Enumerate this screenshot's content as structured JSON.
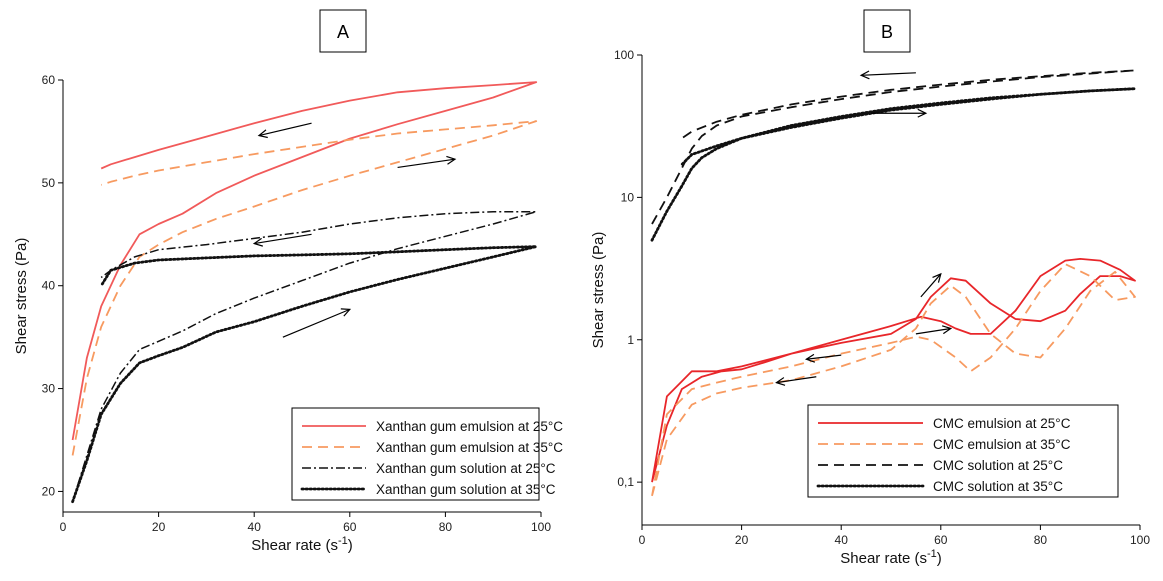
{
  "chart_data": [
    {
      "type": "line",
      "panel_label": "A",
      "xlabel": "Shear rate (s",
      "xlabel_sup": "-1",
      "xlabel_close": ")",
      "ylabel": "Shear stress (Pa)",
      "xlim": [
        0,
        100
      ],
      "ylim": [
        18,
        60
      ],
      "xticks": [
        0,
        20,
        40,
        60,
        80,
        100
      ],
      "yticks": [
        20,
        30,
        40,
        50,
        60
      ],
      "xtick_labels": [
        "0",
        "20",
        "40",
        "60",
        "80",
        "100"
      ],
      "ytick_labels": [
        "20",
        "30",
        "40",
        "50",
        "60"
      ],
      "legend_position": "bottom-right",
      "series": [
        {
          "name": "Xanthan gum emulsion at 25°C",
          "color": "#f15a5a",
          "style": "solid",
          "x": [
            2,
            5,
            8,
            12,
            16,
            20,
            25,
            32,
            40,
            50,
            60,
            70,
            80,
            90,
            99,
            90,
            80,
            70,
            60,
            50,
            40,
            30,
            20,
            15,
            10,
            8
          ],
          "y": [
            25,
            33,
            38,
            42,
            45,
            46,
            47,
            49,
            50.7,
            52.5,
            54.3,
            55.7,
            57,
            58.3,
            59.8,
            59.5,
            59.2,
            58.8,
            58,
            57,
            55.8,
            54.5,
            53.2,
            52.5,
            51.8,
            51.4
          ]
        },
        {
          "name": "Xanthan gum emulsion at 35°C",
          "color": "#f79a60",
          "style": "dashed",
          "x": [
            2,
            5,
            8,
            12,
            16,
            20,
            25,
            32,
            40,
            50,
            60,
            70,
            80,
            90,
            99,
            90,
            80,
            70,
            60,
            50,
            40,
            30,
            20,
            15,
            10,
            8
          ],
          "y": [
            23.5,
            31,
            36,
            40,
            42.8,
            44,
            45.2,
            46.5,
            47.7,
            49.3,
            50.7,
            52,
            53.3,
            54.6,
            56,
            55.6,
            55.2,
            54.8,
            54.2,
            53.5,
            52.8,
            52,
            51.2,
            50.7,
            50.1,
            49.8
          ]
        },
        {
          "name": "Xanthan gum solution at 25°C",
          "color": "#111111",
          "style": "dashdot",
          "x": [
            2,
            5,
            8,
            12,
            16,
            20,
            25,
            32,
            40,
            50,
            60,
            70,
            80,
            90,
            99,
            90,
            80,
            70,
            60,
            50,
            40,
            30,
            20,
            15,
            10,
            8
          ],
          "y": [
            19,
            23.5,
            28,
            31.5,
            33.8,
            34.6,
            35.6,
            37.3,
            38.8,
            40.5,
            42.2,
            43.6,
            44.8,
            46,
            47.2,
            47.2,
            47,
            46.6,
            46,
            45.2,
            44.6,
            44,
            43.5,
            42.8,
            41.5,
            40.8
          ]
        },
        {
          "name": "Xanthan gum solution at 35°C",
          "color": "#111111",
          "style": "dotted",
          "x": [
            2,
            5,
            8,
            12,
            16,
            20,
            25,
            32,
            40,
            50,
            60,
            70,
            80,
            90,
            99,
            90,
            80,
            70,
            60,
            50,
            40,
            30,
            20,
            15,
            10,
            8
          ],
          "y": [
            19,
            23,
            27.5,
            30.5,
            32.5,
            33.2,
            34,
            35.5,
            36.5,
            38,
            39.4,
            40.6,
            41.7,
            42.8,
            43.8,
            43.7,
            43.5,
            43.3,
            43.1,
            43,
            42.9,
            42.7,
            42.5,
            42.2,
            41.5,
            40
          ]
        }
      ]
    },
    {
      "type": "line",
      "panel_label": "B",
      "xlabel": "Shear rate (s",
      "xlabel_sup": "-1",
      "xlabel_close": ")",
      "ylabel": "Shear stress (Pa)",
      "yscale": "log",
      "xlim": [
        0,
        100
      ],
      "ylim": [
        0.05,
        100
      ],
      "xticks": [
        0,
        20,
        40,
        60,
        80,
        100
      ],
      "yticks": [
        0.1,
        1,
        10,
        100
      ],
      "xtick_labels": [
        "0",
        "20",
        "40",
        "60",
        "80",
        "100"
      ],
      "ytick_labels": [
        "0,1",
        "1",
        "10",
        "100"
      ],
      "legend_position": "bottom-right",
      "series": [
        {
          "name": "CMC emulsion at 25°C",
          "color": "#e8262a",
          "style": "solid",
          "x": [
            2,
            5,
            8,
            12,
            16,
            20,
            25,
            30,
            40,
            50,
            55,
            58,
            62,
            65,
            70,
            75,
            80,
            85,
            88,
            92,
            96,
            99,
            96,
            92,
            88,
            85,
            80,
            75,
            70,
            66,
            63,
            60,
            56,
            50,
            40,
            30,
            20,
            15,
            10,
            5,
            2
          ],
          "y": [
            0.1,
            0.25,
            0.45,
            0.55,
            0.6,
            0.62,
            0.7,
            0.8,
            0.95,
            1.1,
            1.4,
            2.0,
            2.7,
            2.6,
            1.8,
            1.4,
            1.35,
            1.6,
            2.1,
            2.8,
            2.8,
            2.6,
            3.1,
            3.6,
            3.7,
            3.6,
            2.8,
            1.6,
            1.1,
            1.1,
            1.2,
            1.35,
            1.45,
            1.25,
            1.0,
            0.8,
            0.65,
            0.6,
            0.6,
            0.4,
            0.1
          ]
        },
        {
          "name": "CMC emulsion at 35°C",
          "color": "#f79a60",
          "style": "dashed",
          "x": [
            2,
            5,
            10,
            15,
            20,
            30,
            40,
            50,
            55,
            58,
            62,
            65,
            70,
            75,
            80,
            85,
            90,
            95,
            99,
            95,
            90,
            85,
            80,
            75,
            70,
            66,
            63,
            58,
            55,
            50,
            40,
            30,
            20,
            15,
            10,
            5,
            2
          ],
          "y": [
            0.08,
            0.2,
            0.35,
            0.42,
            0.46,
            0.52,
            0.65,
            0.85,
            1.2,
            1.8,
            2.4,
            2.0,
            1.1,
            0.8,
            0.75,
            1.2,
            2.2,
            3.0,
            2.0,
            1.9,
            2.8,
            3.4,
            2.2,
            1.2,
            0.75,
            0.6,
            0.75,
            1.0,
            1.05,
            0.95,
            0.8,
            0.65,
            0.55,
            0.5,
            0.45,
            0.3,
            0.08
          ]
        },
        {
          "name": "CMC solution at 25°C",
          "color": "#111111",
          "style": "dashed",
          "x": [
            2,
            5,
            8,
            10,
            12,
            15,
            20,
            30,
            40,
            50,
            60,
            70,
            80,
            90,
            99,
            90,
            80,
            70,
            60,
            50,
            40,
            30,
            20,
            15,
            10,
            8
          ],
          "y": [
            6.5,
            10,
            16,
            22,
            27,
            32,
            37,
            43,
            49,
            55,
            60,
            65,
            70,
            74,
            78,
            75,
            71,
            67,
            62,
            57,
            51,
            45,
            38,
            34,
            29,
            26
          ]
        },
        {
          "name": "CMC solution at 35°C",
          "color": "#111111",
          "style": "dotted",
          "x": [
            2,
            5,
            8,
            10,
            12,
            15,
            20,
            30,
            40,
            50,
            60,
            70,
            80,
            90,
            99,
            90,
            80,
            70,
            60,
            50,
            40,
            30,
            20,
            15,
            10,
            8
          ],
          "y": [
            5,
            8,
            12,
            16,
            19,
            22,
            26,
            32,
            37,
            42,
            46,
            50,
            53,
            56,
            58,
            56,
            53,
            49,
            45,
            41,
            36,
            31,
            26,
            23,
            20,
            17
          ]
        }
      ]
    }
  ]
}
